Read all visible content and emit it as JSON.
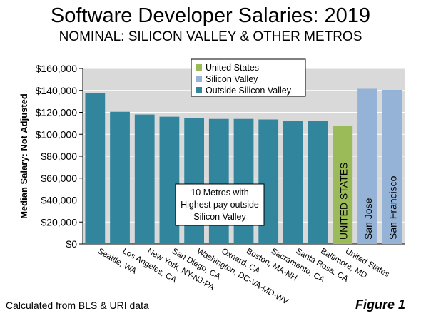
{
  "title": "Software Developer Salaries: 2019",
  "subtitle": "NOMINAL: SILICON VALLEY & OTHER METROS",
  "footnote": "Calculated from BLS & URI data",
  "figure_label": "Figure 1",
  "annotation_lines": [
    "10 Metros with",
    "Highest pay outside",
    "Silicon Valley"
  ],
  "colors": {
    "United States": "#9bbb59",
    "Silicon Valley": "#95b3d7",
    "Outside Silicon Valley": "#31859c",
    "plot_background": "#d9d9d9",
    "gridline": "#ffffff"
  },
  "chart_data": {
    "type": "bar",
    "ylabel": "Median Salary: Not Adjusted",
    "xlabel": "",
    "ylim": [
      0,
      160000
    ],
    "yticks": [
      0,
      20000,
      40000,
      60000,
      80000,
      100000,
      120000,
      140000,
      160000
    ],
    "ytick_labels": [
      "$0",
      "$20,000",
      "$40,000",
      "$60,000",
      "$80,000",
      "$100,000",
      "$120,000",
      "$140,000",
      "$160,000"
    ],
    "grid": true,
    "legend_position": "top-center",
    "legend": [
      "United States",
      "Silicon Valley",
      "Outside Silicon Valley"
    ],
    "categories": [
      "Seattle, WA",
      "Los Angeles, CA",
      "New York, NY-NJ-PA",
      "San Diego, CA",
      "Washington, DC-VA-MD-WV",
      "Oxnard, CA",
      "Boston, MA-NH",
      "Sacramento, CA",
      "Santa Rosa, CA",
      "Baltimore, MD",
      "United States",
      "San Jose",
      "San Francisco"
    ],
    "values": [
      137500,
      120500,
      118000,
      116000,
      115000,
      114000,
      114000,
      113500,
      112500,
      112500,
      107500,
      141500,
      140500
    ],
    "groups": [
      "Outside Silicon Valley",
      "Outside Silicon Valley",
      "Outside Silicon Valley",
      "Outside Silicon Valley",
      "Outside Silicon Valley",
      "Outside Silicon Valley",
      "Outside Silicon Valley",
      "Outside Silicon Valley",
      "Outside Silicon Valley",
      "Outside Silicon Valley",
      "United States",
      "Silicon Valley",
      "Silicon Valley"
    ],
    "in_bar_labels": [
      "",
      "",
      "",
      "",
      "",
      "",
      "",
      "",
      "",
      "",
      "UNITED STATES",
      "San Jose",
      "San Francisco"
    ],
    "x_tick_labels": [
      "Seattle, WA",
      "Los Angeles, CA",
      "New York, NY-NJ-PA",
      "San Diego, CA",
      "Washington, DC-VA-MD-WV",
      "Oxnard, CA",
      "Boston, MA-NH",
      "Sacramento, CA",
      "Santa Rosa, CA",
      "Baltimore, MD",
      "United States",
      "",
      ""
    ]
  }
}
